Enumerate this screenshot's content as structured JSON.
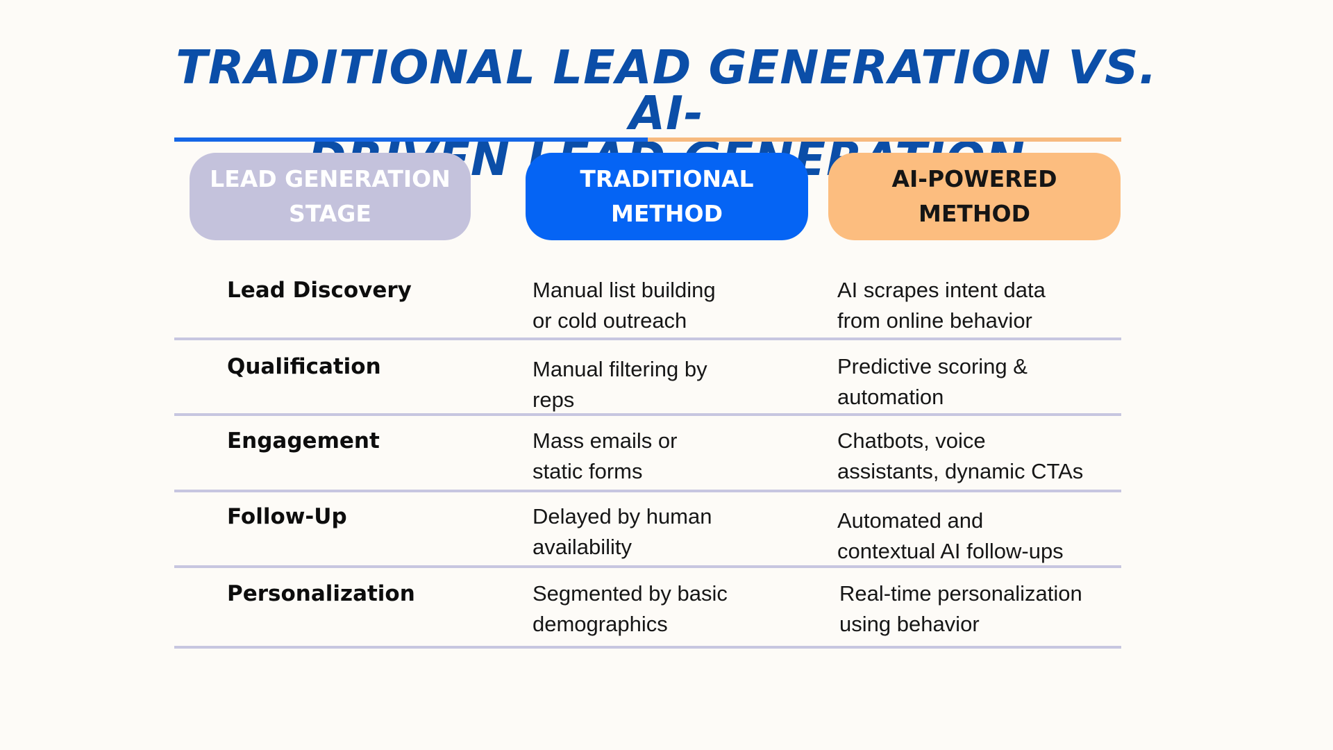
{
  "title": "TRADITIONAL LEAD GENERATION VS. AI-\nDRIVEN LEAD GENERATION",
  "headers": {
    "stage": "LEAD GENERATION\nSTAGE",
    "traditional": "TRADITIONAL\nMETHOD",
    "ai": "AI-POWERED\nMETHOD"
  },
  "rows": [
    {
      "stage": "Lead Discovery",
      "traditional": "Manual list building\nor cold outreach",
      "ai": "AI scrapes intent data\nfrom online behavior"
    },
    {
      "stage": "Qualification",
      "traditional": "Manual filtering by\nreps",
      "ai": "Predictive scoring &\nautomation"
    },
    {
      "stage": "Engagement",
      "traditional": "Mass emails or\nstatic forms",
      "ai": "Chatbots, voice\nassistants, dynamic CTAs"
    },
    {
      "stage": "Follow-Up",
      "traditional": "Delayed by human\navailability",
      "ai": "Automated and\ncontextual AI follow-ups"
    },
    {
      "stage": "Personalization",
      "traditional": "Segmented by basic\ndemographics",
      "ai": "Real-time personalization\nusing behavior"
    }
  ],
  "colors": {
    "title": "#0b4ea8",
    "traditional_accent": "#0564f4",
    "ai_accent": "#fcbd7f",
    "stage_header": "#c4c2dc",
    "divider": "#c7c6e0",
    "background": "#fdfbf7"
  }
}
